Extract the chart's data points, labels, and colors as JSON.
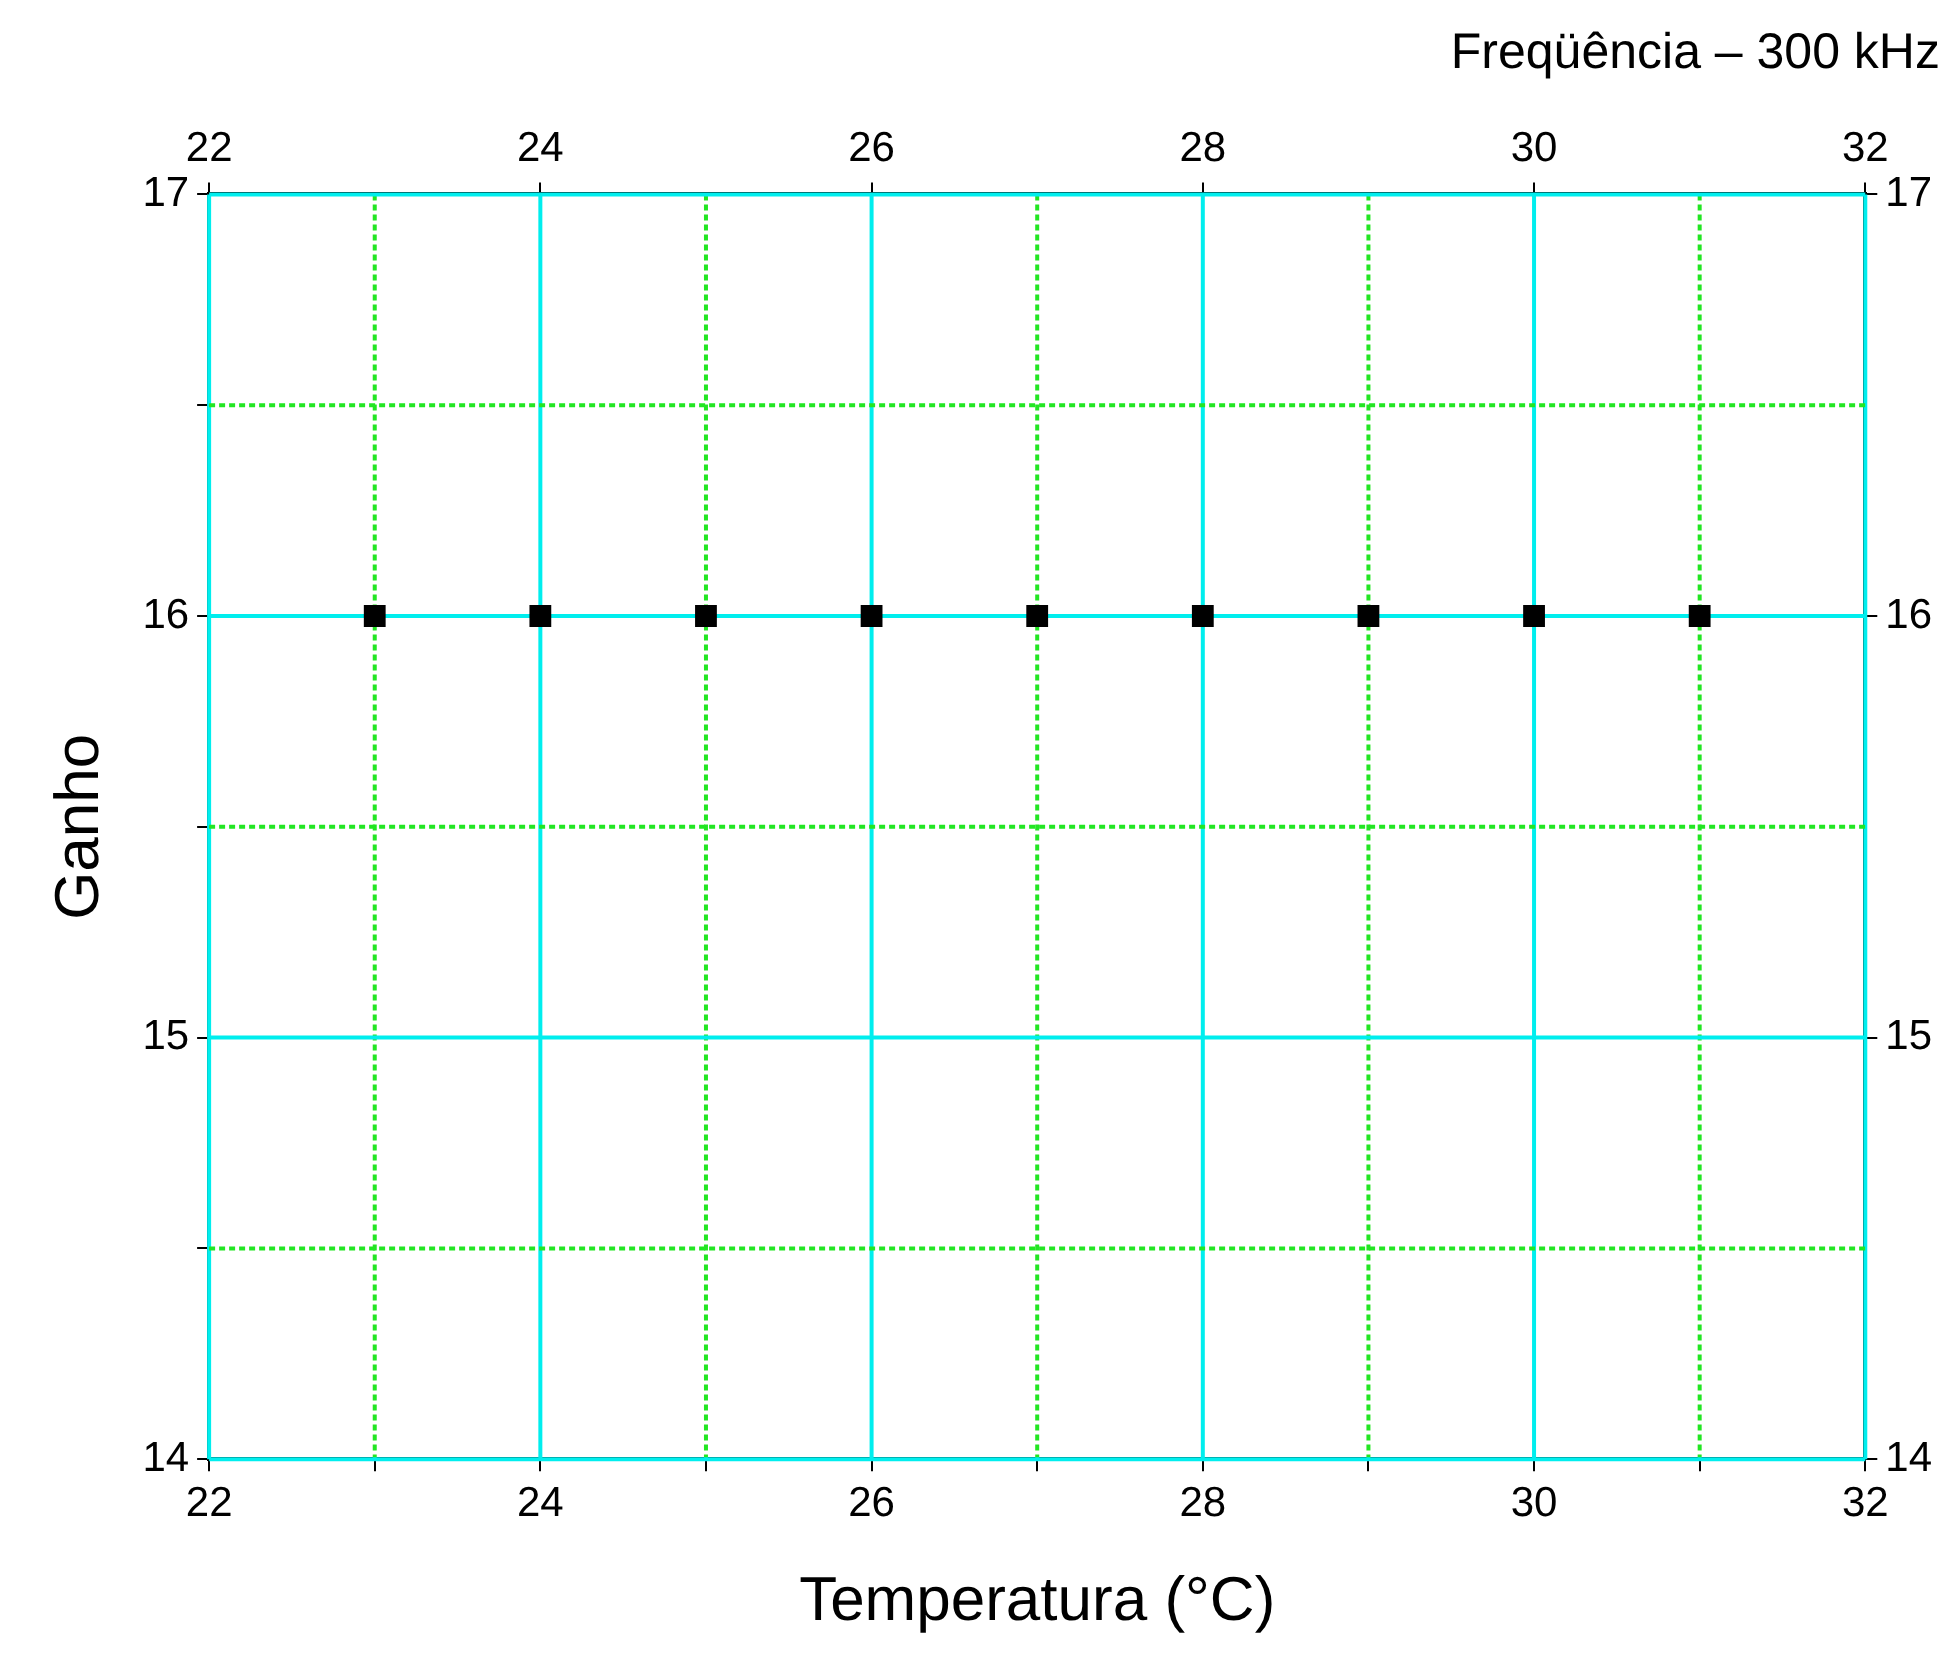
{
  "chart_data": {
    "type": "scatter",
    "title": "Freqüência – 300 kHz",
    "xlabel": "Temperatura (°C)",
    "ylabel": "Ganho",
    "x": [
      23,
      24,
      25,
      26,
      27,
      28,
      29,
      30,
      31
    ],
    "series": [
      {
        "color": "#000000",
        "values": [
          16,
          16,
          16,
          16,
          16,
          16,
          16,
          16,
          16
        ]
      }
    ],
    "marker": "square",
    "grid": true,
    "legend": false,
    "xlim": [
      22,
      32
    ],
    "xticks": [
      22,
      {
        "value": 23,
        "label": null
      },
      24,
      {
        "value": 25,
        "label": null
      },
      26,
      {
        "value": 27,
        "label": null
      },
      28,
      {
        "value": 29,
        "label": null
      },
      30,
      {
        "value": 31,
        "label": null
      },
      32
    ],
    "x2lim": [
      22,
      32
    ],
    "x2ticks": [
      22,
      24,
      26,
      28,
      30,
      32
    ],
    "ylim": [
      14,
      17
    ],
    "yticks": [
      14,
      {
        "value": 14.5,
        "label": null
      },
      15,
      {
        "value": 15.5,
        "label": null
      },
      16,
      {
        "value": 16.5,
        "label": null
      },
      17
    ],
    "y2lim": [
      14,
      17
    ],
    "y2ticks": [
      14,
      15,
      16,
      17
    ]
  }
}
